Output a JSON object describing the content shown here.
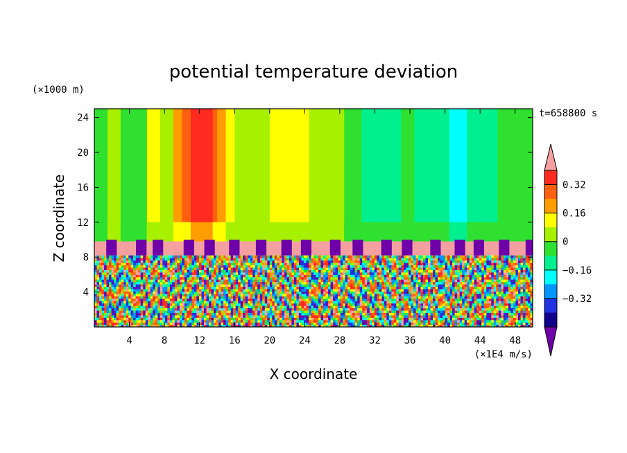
{
  "chart_data": {
    "type": "heatmap",
    "title": "potential temperature deviation",
    "xlabel": "X coordinate",
    "ylabel": "Z coordinate",
    "x_unit": "(×1E4 m/s)",
    "y_unit": "(×1000 m)",
    "time_label": "t=658800 s",
    "xlim": [
      0,
      50
    ],
    "ylim": [
      0,
      25
    ],
    "x_ticks": [
      4,
      8,
      12,
      16,
      20,
      24,
      28,
      32,
      36,
      40,
      44,
      48
    ],
    "y_ticks": [
      4,
      8,
      12,
      16,
      20,
      24
    ],
    "x_tick_labels": [
      "4",
      "8",
      "12",
      "16",
      "20",
      "24",
      "28",
      "32",
      "36",
      "40",
      "44",
      "48"
    ],
    "y_tick_labels": [
      "4",
      "8",
      "12",
      "16",
      "20",
      "24"
    ],
    "colorbar": {
      "tick_values": [
        0.32,
        0.16,
        0,
        -0.16,
        -0.32
      ],
      "tick_labels": [
        "0.32",
        "0.16",
        "0",
        "−0.16",
        "−0.32"
      ],
      "levels": [
        {
          "color": "#f4a0a0",
          "label": "above max"
        },
        {
          "color": "#ff2a20"
        },
        {
          "color": "#ff6010"
        },
        {
          "color": "#ff9c00"
        },
        {
          "color": "#ffff00"
        },
        {
          "color": "#a6f000"
        },
        {
          "color": "#30e030"
        },
        {
          "color": "#00f090"
        },
        {
          "color": "#00ffff"
        },
        {
          "color": "#0096ff"
        },
        {
          "color": "#2232e0"
        },
        {
          "color": "#10008c"
        },
        {
          "color": "#6e00a8",
          "label": "below min"
        }
      ]
    },
    "upper_layer_columns": [
      {
        "x0": 0,
        "x1": 1.5,
        "v": 0.0
      },
      {
        "x0": 1.5,
        "x1": 3.0,
        "v": 0.04
      },
      {
        "x0": 3.0,
        "x1": 6.0,
        "v": 0.0
      },
      {
        "x0": 6.0,
        "x1": 7.5,
        "v": 0.1
      },
      {
        "x0": 7.5,
        "x1": 9.0,
        "v": 0.08
      },
      {
        "x0": 9.0,
        "x1": 10.0,
        "v": 0.18
      },
      {
        "x0": 10.0,
        "x1": 11.0,
        "v": 0.26
      },
      {
        "x0": 11.0,
        "x1": 13.5,
        "v": 0.34
      },
      {
        "x0": 13.5,
        "x1": 14.0,
        "v": 0.26
      },
      {
        "x0": 14.0,
        "x1": 15.0,
        "v": 0.18
      },
      {
        "x0": 15.0,
        "x1": 16.0,
        "v": 0.1
      },
      {
        "x0": 16.0,
        "x1": 18.0,
        "v": 0.08
      },
      {
        "x0": 18.0,
        "x1": 20.0,
        "v": 0.06
      },
      {
        "x0": 20.0,
        "x1": 24.5,
        "v": 0.12
      },
      {
        "x0": 24.5,
        "x1": 28.5,
        "v": 0.06
      },
      {
        "x0": 28.5,
        "x1": 30.5,
        "v": 0.0
      },
      {
        "x0": 30.5,
        "x1": 35.0,
        "v": -0.08
      },
      {
        "x0": 35.0,
        "x1": 36.5,
        "v": 0.0
      },
      {
        "x0": 36.5,
        "x1": 40.5,
        "v": -0.14
      },
      {
        "x0": 40.5,
        "x1": 42.5,
        "v": -0.2
      },
      {
        "x0": 42.5,
        "x1": 46.0,
        "v": -0.1
      },
      {
        "x0": 46.0,
        "x1": 50.0,
        "v": 0.0
      }
    ],
    "inversion_layer": {
      "z0": 8.2,
      "z1": 9.8,
      "v": 0.5
    },
    "boundary_layer": {
      "z0": 0,
      "z1": 8.2,
      "v_range": [
        -0.5,
        0.5
      ]
    }
  }
}
